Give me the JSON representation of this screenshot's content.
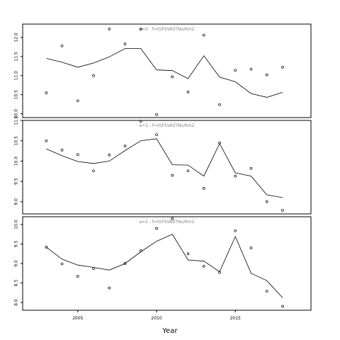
{
  "chart_data": {
    "type": "line",
    "xlabel": "Year",
    "x_ticks": [
      2005,
      2010,
      2015
    ],
    "xlim": [
      2001.5,
      2019.8
    ],
    "panels": [
      {
        "title": "a=0 : f=IGFSVASTNo/Km2",
        "ylim": [
          9.9,
          12.35
        ],
        "y_ticks": [
          10.0,
          10.5,
          11.0,
          11.5,
          12.0
        ],
        "y_tick_labels": [
          "10.0",
          "10.5",
          "11.0",
          "11.5",
          "12.0"
        ],
        "points": {
          "x": [
            2003,
            2004,
            2005,
            2006,
            2007,
            2008,
            2009,
            2010,
            2011,
            2012,
            2013,
            2014,
            2015,
            2016,
            2017,
            2018
          ],
          "y": [
            10.55,
            11.78,
            10.34,
            11.0,
            12.22,
            11.83,
            12.22,
            9.98,
            10.97,
            10.57,
            12.06,
            10.24,
            11.14,
            11.17,
            11.02,
            11.22
          ]
        },
        "line": {
          "x": [
            2003,
            2004,
            2005,
            2006,
            2007,
            2008,
            2009,
            2010,
            2011,
            2012,
            2013,
            2014,
            2015,
            2016,
            2017,
            2018
          ],
          "y": [
            11.45,
            11.35,
            11.22,
            11.33,
            11.49,
            11.71,
            11.71,
            11.15,
            11.13,
            10.92,
            11.52,
            10.96,
            10.84,
            10.53,
            10.43,
            10.56
          ]
        }
      },
      {
        "title": "a=1 : f=IGFSVASTNo/Km2",
        "ylim": [
          8.7,
          11.0
        ],
        "y_ticks": [
          9.0,
          9.5,
          10.0,
          10.5,
          11.0
        ],
        "y_tick_labels": [
          "9.0",
          "9.5",
          "10.0",
          "10.5",
          "11.0"
        ],
        "points": {
          "x": [
            2003,
            2004,
            2005,
            2006,
            2007,
            2008,
            2009,
            2010,
            2011,
            2012,
            2013,
            2014,
            2015,
            2016,
            2017,
            2018
          ],
          "y": [
            10.5,
            10.27,
            10.16,
            9.76,
            10.15,
            10.37,
            10.98,
            10.65,
            9.65,
            9.76,
            9.33,
            10.45,
            9.63,
            9.82,
            9.0,
            8.79
          ]
        },
        "line": {
          "x": [
            2003,
            2004,
            2005,
            2006,
            2007,
            2008,
            2009,
            2010,
            2011,
            2012,
            2013,
            2014,
            2015,
            2016,
            2017,
            2018
          ],
          "y": [
            10.3,
            10.13,
            9.99,
            9.94,
            10.0,
            10.26,
            10.5,
            10.55,
            9.91,
            9.9,
            9.63,
            10.43,
            9.71,
            9.63,
            9.17,
            9.1
          ]
        }
      },
      {
        "title": "a=2 : f=IGFSVASTNo/Km2",
        "ylim": [
          7.8,
          10.2
        ],
        "y_ticks": [
          8.0,
          8.5,
          9.0,
          9.5,
          10.0
        ],
        "y_tick_labels": [
          "8.0",
          "8.5",
          "9.0",
          "9.5",
          "10.0"
        ],
        "points": {
          "x": [
            2003,
            2004,
            2005,
            2006,
            2007,
            2008,
            2009,
            2010,
            2011,
            2012,
            2013,
            2014,
            2015,
            2016,
            2017,
            2018
          ],
          "y": [
            9.42,
            8.99,
            8.67,
            8.87,
            8.37,
            9.0,
            9.33,
            9.9,
            10.15,
            9.25,
            8.93,
            8.77,
            9.84,
            9.4,
            8.29,
            7.9
          ]
        },
        "line": {
          "x": [
            2003,
            2004,
            2005,
            2006,
            2007,
            2008,
            2009,
            2010,
            2011,
            2012,
            2013,
            2014,
            2015,
            2016,
            2017,
            2018
          ],
          "y": [
            9.42,
            9.11,
            8.96,
            8.9,
            8.83,
            9.0,
            9.3,
            9.57,
            9.75,
            9.09,
            9.06,
            8.79,
            9.69,
            8.75,
            8.56,
            8.12
          ]
        }
      }
    ]
  }
}
